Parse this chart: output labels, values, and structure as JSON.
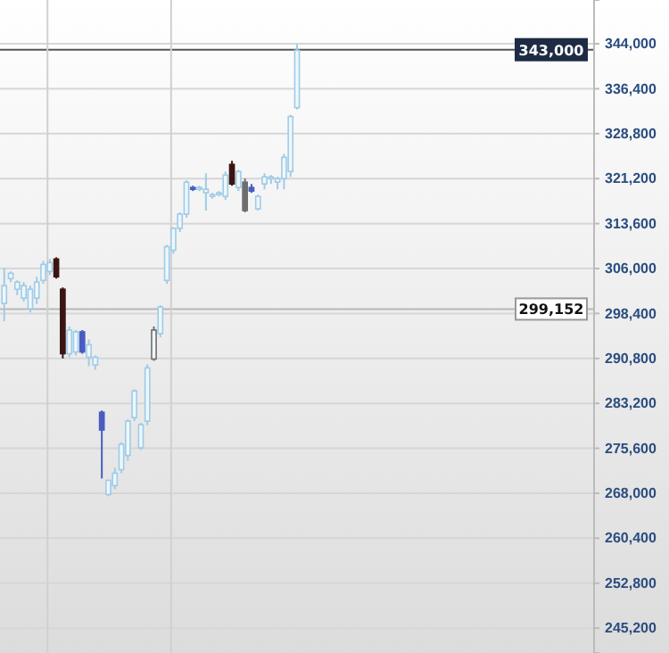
{
  "chart_data": {
    "type": "candlestick",
    "categories": [
      null,
      null,
      null,
      null,
      null,
      null,
      null,
      null,
      null,
      null,
      null,
      null,
      null,
      null,
      null,
      null,
      null,
      null,
      null,
      null,
      null,
      null,
      null,
      null,
      null,
      null,
      null,
      null,
      null,
      null,
      null,
      null,
      null,
      null,
      null,
      null,
      null,
      null,
      null,
      null,
      null,
      null,
      null,
      null,
      null,
      null,
      null,
      null,
      null,
      null,
      null,
      null,
      null,
      null,
      null,
      null,
      null,
      null,
      null,
      null,
      null,
      null,
      null,
      null,
      null,
      null,
      null,
      null,
      null,
      null,
      null,
      null,
      null,
      null,
      null,
      null,
      null,
      null,
      null,
      null,
      null,
      null,
      null,
      null,
      null,
      null,
      null,
      null,
      null,
      null,
      null
    ],
    "ohlc": [
      [
        300100,
        306100,
        297100,
        303100
      ],
      [
        304300,
        305500,
        303700,
        305200
      ],
      [
        302500,
        304000,
        301500,
        303700
      ],
      [
        301000,
        303700,
        300400,
        303100
      ],
      [
        299200,
        303100,
        298600,
        302500
      ],
      [
        301000,
        304600,
        300000,
        303700
      ],
      [
        304000,
        307300,
        303400,
        306700
      ],
      [
        305500,
        307600,
        304900,
        307000
      ],
      [
        307600,
        307900,
        304300,
        304600
      ],
      [
        302500,
        302800,
        290800,
        291600
      ],
      [
        291600,
        296200,
        291000,
        295600
      ],
      [
        291900,
        295600,
        291300,
        295300
      ],
      [
        295300,
        295600,
        291600,
        291900
      ],
      [
        291000,
        294000,
        289500,
        293100
      ],
      [
        289700,
        291300,
        288900,
        291000
      ],
      [
        281700,
        282000,
        270500,
        278700
      ],
      [
        267800,
        270200,
        267500,
        270200
      ],
      [
        269300,
        272300,
        268700,
        271400
      ],
      [
        272000,
        276600,
        271400,
        276300
      ],
      [
        274400,
        280500,
        273500,
        280200
      ],
      [
        280800,
        285600,
        280200,
        285300
      ],
      [
        275700,
        279900,
        275300,
        279600
      ],
      [
        280200,
        289800,
        279500,
        289200
      ],
      [
        290700,
        296200,
        290400,
        295600
      ],
      [
        295000,
        299800,
        294400,
        299500
      ],
      [
        304000,
        310000,
        303400,
        309700
      ],
      [
        309100,
        313000,
        308500,
        312800
      ],
      [
        312800,
        315500,
        312200,
        315200
      ],
      [
        315200,
        320900,
        314600,
        320600
      ],
      [
        319700,
        320000,
        319100,
        319400
      ],
      [
        319400,
        320000,
        319100,
        319700
      ],
      [
        318800,
        322100,
        315800,
        319400
      ],
      [
        318200,
        318800,
        317800,
        318500
      ],
      [
        318500,
        319100,
        318200,
        318800
      ],
      [
        318200,
        322400,
        317600,
        321800
      ],
      [
        323600,
        324200,
        320000,
        320300
      ],
      [
        319700,
        322700,
        319100,
        322400
      ],
      [
        320600,
        321200,
        315500,
        315800
      ],
      [
        319700,
        320300,
        318800,
        319100
      ],
      [
        316100,
        318500,
        315800,
        318200
      ],
      [
        320300,
        322100,
        319400,
        321500
      ],
      [
        321200,
        321800,
        320300,
        321500
      ],
      [
        320600,
        321500,
        319400,
        321200
      ],
      [
        321200,
        325400,
        319400,
        324800
      ],
      [
        322400,
        332000,
        321500,
        331700
      ],
      [
        333200,
        343900,
        332900,
        342900
      ],
      null,
      null,
      null,
      null,
      null,
      null,
      null,
      null,
      null,
      null,
      null,
      null,
      null,
      null,
      null,
      null,
      null,
      null,
      null,
      null,
      null,
      null,
      null,
      null,
      null,
      null,
      null,
      null,
      null,
      null,
      null,
      null,
      null,
      null,
      null,
      null,
      null,
      null,
      null,
      null,
      null,
      null,
      null,
      null,
      null
    ],
    "colors": [
      "#9fcbe6",
      "#9fcbe6",
      "#9fcbe6",
      "#9fcbe6",
      "#9fcbe6",
      "#9fcbe6",
      "#9fcbe6",
      "#9fcbe6",
      "#3b1414",
      "#3b1414",
      "#9fcbe6",
      "#9fcbe6",
      "#4a5cc0",
      "#9fcbe6",
      "#9fcbe6",
      "#4a5cc0",
      "#9fcbe6",
      "#9fcbe6",
      "#9fcbe6",
      "#9fcbe6",
      "#9fcbe6",
      "#9fcbe6",
      "#9fcbe6",
      "#6e6e6e",
      "#9fcbe6",
      "#9fcbe6",
      "#9fcbe6",
      "#9fcbe6",
      "#9fcbe6",
      "#4a5cc0",
      "#9fcbe6",
      "#9fcbe6",
      "#9fcbe6",
      "#9fcbe6",
      "#9fcbe6",
      "#3b1414",
      "#9fcbe6",
      "#6e6e6e",
      "#4a5cc0",
      "#9fcbe6",
      "#9fcbe6",
      "#9fcbe6",
      "#9fcbe6",
      "#9fcbe6",
      "#9fcbe6",
      "#9fcbe6",
      null,
      null,
      null,
      null,
      null,
      null,
      null,
      null,
      null,
      null,
      null,
      null,
      null,
      null,
      null,
      null,
      null,
      null,
      null,
      null,
      null,
      null,
      null,
      null,
      null,
      null,
      null,
      null,
      null,
      null,
      null,
      null,
      null,
      null,
      null,
      null,
      null,
      null,
      null,
      null,
      null,
      null,
      null,
      null,
      null
    ],
    "ylim": [
      241000,
      351400
    ],
    "yticks": [
      {
        "value": 245200,
        "label": "245,200"
      },
      {
        "value": 252800,
        "label": "252,800"
      },
      {
        "value": 260400,
        "label": "260,400"
      },
      {
        "value": 268000,
        "label": "268,000"
      },
      {
        "value": 275600,
        "label": "275,600"
      },
      {
        "value": 283200,
        "label": "283,200"
      },
      {
        "value": 290800,
        "label": "290,800"
      },
      {
        "value": 298400,
        "label": "298,400"
      },
      {
        "value": 306000,
        "label": "306,000"
      },
      {
        "value": 313600,
        "label": "313,600"
      },
      {
        "value": 321200,
        "label": "321,200"
      },
      {
        "value": 328800,
        "label": "328,800"
      },
      {
        "value": 336400,
        "label": "336,400"
      },
      {
        "value": 344000,
        "label": "344,000"
      }
    ],
    "grid": "y",
    "ref_lines": [
      {
        "axis": "y",
        "value": 343000,
        "label": "343,000",
        "color": "#555555"
      },
      {
        "axis": "y",
        "value": 299152,
        "label": "299,152",
        "color": "#b8b8b8"
      }
    ]
  }
}
